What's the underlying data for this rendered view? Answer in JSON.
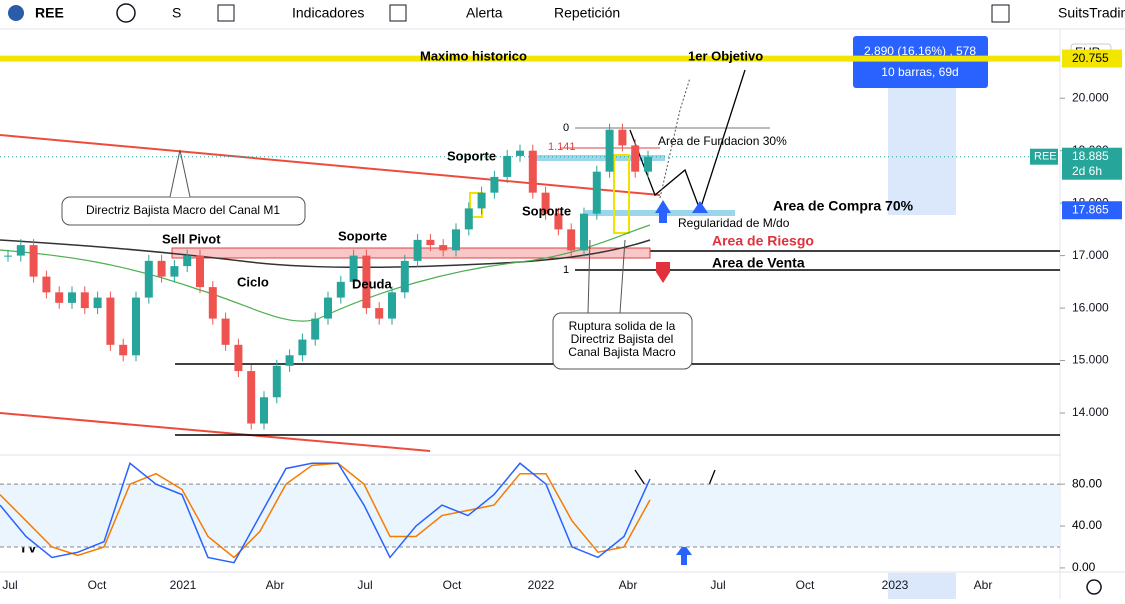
{
  "toolbar": {
    "symbol": "REE",
    "interval": "S",
    "indicators": "Indicadores",
    "alert": "Alerta",
    "replay": "Repetición",
    "suits": "SuitsTradin"
  },
  "price_axis": {
    "currency": "EUR",
    "ylim": [
      13.2,
      21.3
    ],
    "ticks": [
      {
        "value": 20,
        "label": "20.000"
      },
      {
        "value": 19,
        "label": "19.000"
      },
      {
        "value": 18,
        "label": "18.000"
      },
      {
        "value": 17,
        "label": "17.000"
      },
      {
        "value": 16,
        "label": "16.000"
      },
      {
        "value": 15,
        "label": "15.000"
      },
      {
        "value": 14,
        "label": "14.000"
      }
    ]
  },
  "price_labels": {
    "high": {
      "value": 20.755,
      "label": "20.755"
    },
    "symbol": "REE",
    "last": {
      "value": 18.885,
      "label": "18.885"
    },
    "countdown": "2d 6h",
    "level": {
      "value": 17.865,
      "label": "17.865"
    }
  },
  "measure": {
    "line1": "2.890 (16.16%) , 578",
    "line2": "10 barras, 69d"
  },
  "annotations": [
    "Maximo historico",
    "1er Objetivo",
    "Soporte",
    "Directriz Bajista Macro del Canal M1",
    "Sell Pivot",
    "Soporte",
    "Ciclo",
    "Deuda",
    "Soporte",
    "Area de Fundacion 30%",
    "Area de Compra 70%",
    "Regularidad de M/do",
    "Area de Riesgo",
    "Area de Venta",
    "0",
    "1",
    "1.141"
  ],
  "callout": [
    "Ruptura solida de la",
    "Directriz Bajista del",
    "Canal Bajista Macro"
  ],
  "time_axis": [
    "Jul",
    "Oct",
    "2021",
    "Abr",
    "Jul",
    "Oct",
    "2022",
    "Abr",
    "Jul",
    "Oct",
    "2023",
    "Abr"
  ],
  "price": {
    "closes": [
      17.0,
      17.2,
      16.6,
      16.3,
      16.1,
      16.3,
      16.0,
      16.2,
      15.3,
      15.1,
      16.2,
      16.9,
      16.6,
      16.8,
      17.0,
      16.4,
      15.8,
      15.3,
      14.8,
      13.8,
      14.3,
      14.9,
      15.1,
      15.4,
      15.8,
      16.2,
      16.5,
      17.0,
      16.0,
      15.8,
      16.3,
      16.9,
      17.3,
      17.2,
      17.1,
      17.5,
      17.9,
      18.2,
      18.5,
      18.9,
      19.0,
      18.2,
      17.8,
      17.5,
      17.1,
      17.8,
      18.6,
      19.4,
      19.1,
      18.6,
      18.885
    ]
  },
  "oscillator": {
    "ylim": [
      -2,
      105
    ],
    "ticks": [
      {
        "value": 80,
        "label": "80.00"
      },
      {
        "value": 40,
        "label": "40.00"
      },
      {
        "value": 0,
        "label": "0.00"
      }
    ],
    "bands": [
      80,
      20
    ],
    "k": [
      60,
      30,
      10,
      15,
      25,
      100,
      80,
      70,
      10,
      5,
      50,
      95,
      100,
      100,
      60,
      10,
      40,
      60,
      50,
      70,
      100,
      80,
      20,
      10,
      30,
      85
    ],
    "d": [
      70,
      45,
      20,
      12,
      20,
      80,
      90,
      75,
      30,
      10,
      35,
      80,
      98,
      100,
      80,
      30,
      30,
      50,
      55,
      60,
      90,
      90,
      45,
      15,
      20,
      65
    ]
  }
}
